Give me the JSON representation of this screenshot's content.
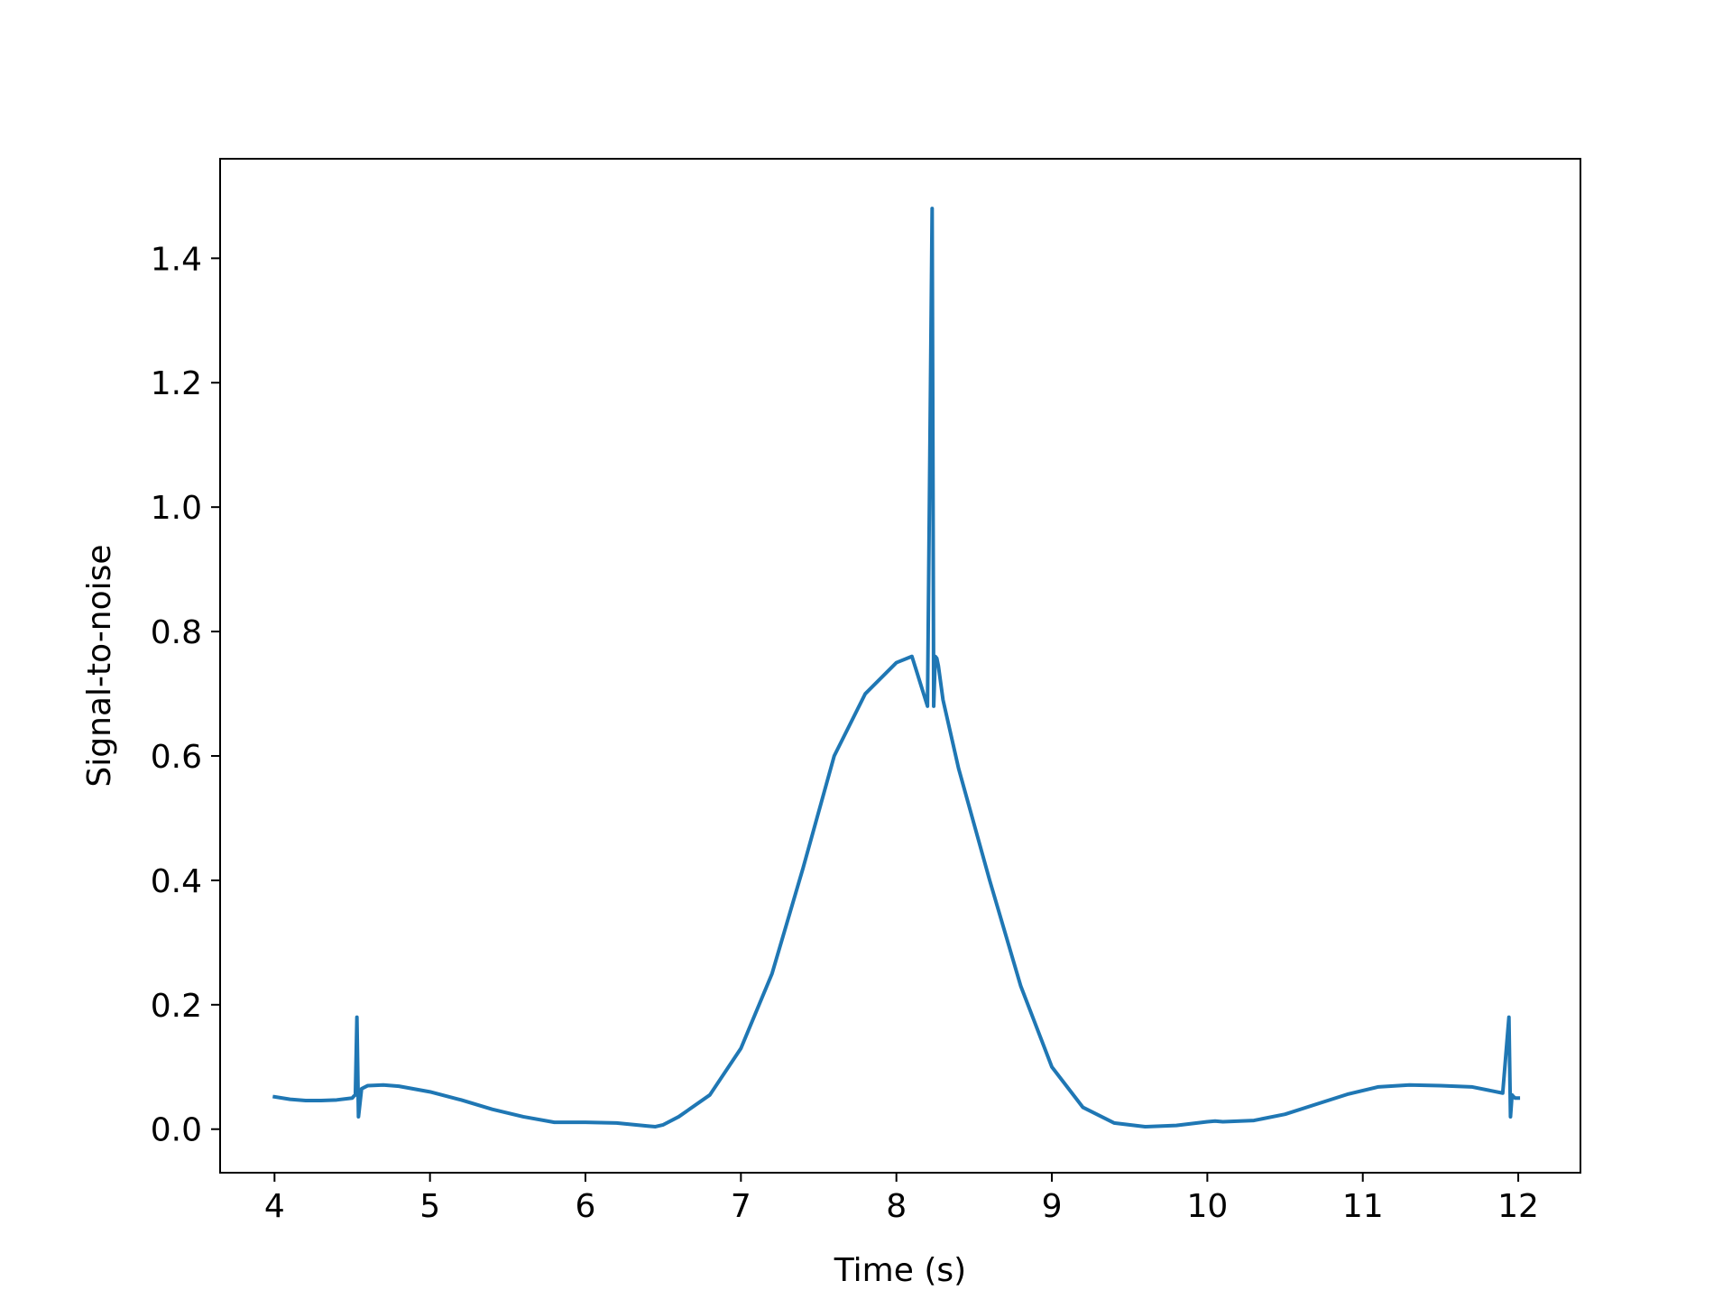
{
  "chart_data": {
    "type": "line",
    "title": "",
    "xlabel": "Time (s)",
    "ylabel": "Signal-to-noise",
    "xlim": [
      3.65,
      12.4
    ],
    "ylim": [
      -0.07,
      1.56
    ],
    "xticks": [
      4,
      5,
      6,
      7,
      8,
      9,
      10,
      11,
      12
    ],
    "yticks": [
      0.0,
      0.2,
      0.4,
      0.6,
      0.8,
      1.0,
      1.2,
      1.4
    ],
    "ytick_labels": [
      "0.0",
      "0.2",
      "0.4",
      "0.6",
      "0.8",
      "1.0",
      "1.2",
      "1.4"
    ],
    "grid": false,
    "legend": false,
    "series": [
      {
        "color": "#1f77b4",
        "x": [
          4.0,
          4.1,
          4.2,
          4.3,
          4.4,
          4.5,
          4.51,
          4.52,
          4.53,
          4.54,
          4.56,
          4.6,
          4.7,
          4.8,
          5.0,
          5.2,
          5.4,
          5.6,
          5.8,
          6.0,
          6.2,
          6.4,
          6.45,
          6.5,
          6.6,
          6.8,
          7.0,
          7.2,
          7.4,
          7.6,
          7.8,
          8.0,
          8.1,
          8.2,
          8.23,
          8.24,
          8.25,
          8.26,
          8.27,
          8.3,
          8.4,
          8.6,
          8.8,
          9.0,
          9.2,
          9.4,
          9.6,
          9.8,
          10.0,
          10.05,
          10.1,
          10.3,
          10.5,
          10.7,
          10.9,
          11.1,
          11.3,
          11.5,
          11.7,
          11.9,
          11.94,
          11.95,
          11.96,
          11.97,
          11.98,
          12.0
        ],
        "y": [
          0.052,
          0.048,
          0.046,
          0.046,
          0.047,
          0.05,
          0.053,
          0.055,
          0.18,
          0.02,
          0.065,
          0.07,
          0.071,
          0.069,
          0.06,
          0.047,
          0.032,
          0.02,
          0.011,
          0.011,
          0.01,
          0.005,
          0.004,
          0.007,
          0.02,
          0.055,
          0.13,
          0.25,
          0.42,
          0.6,
          0.7,
          0.75,
          0.76,
          0.68,
          1.48,
          0.68,
          0.76,
          0.757,
          0.745,
          0.69,
          0.58,
          0.4,
          0.23,
          0.1,
          0.035,
          0.01,
          0.004,
          0.006,
          0.012,
          0.013,
          0.012,
          0.014,
          0.024,
          0.04,
          0.056,
          0.068,
          0.071,
          0.07,
          0.068,
          0.058,
          0.18,
          0.02,
          0.055,
          0.052,
          0.05,
          0.05
        ]
      }
    ]
  }
}
